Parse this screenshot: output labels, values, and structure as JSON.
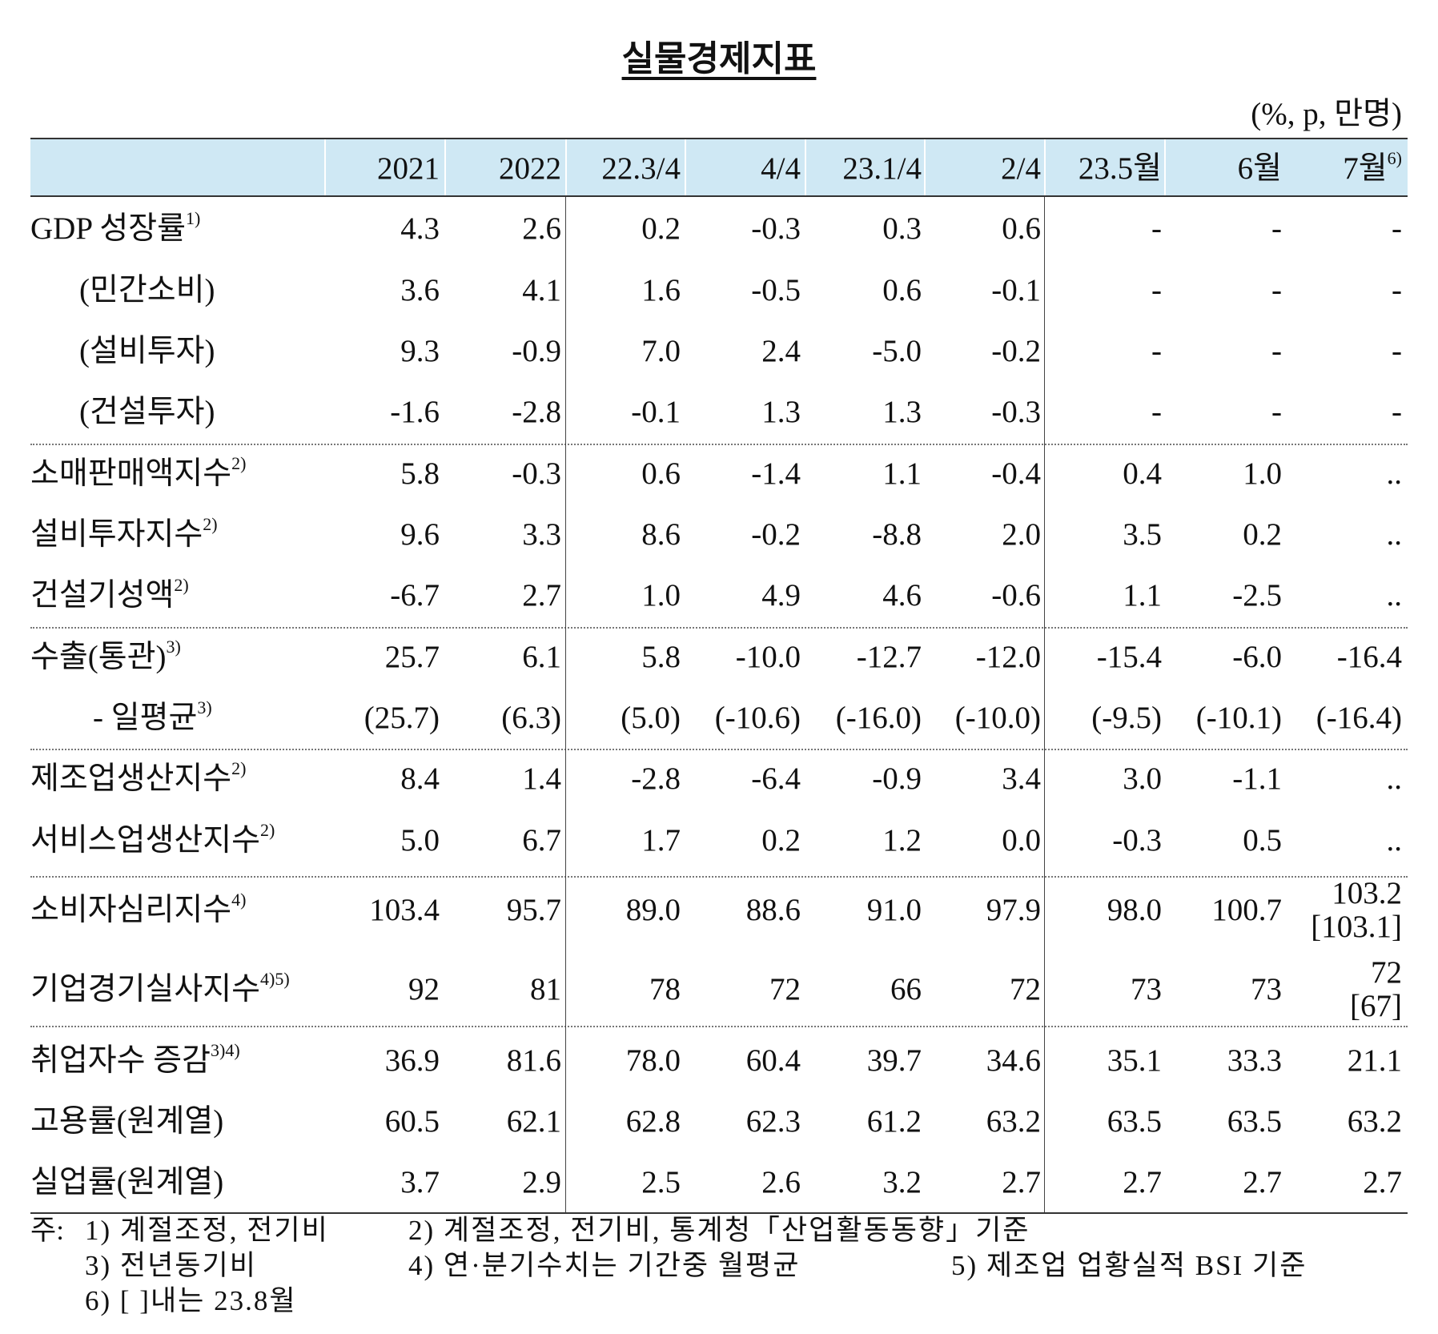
{
  "title": "실물경제지표",
  "unit": "(%, p, 만명)",
  "table": {
    "header": [
      {
        "text": "2021"
      },
      {
        "text": "2022"
      },
      {
        "text": "22.3/4"
      },
      {
        "text": "4/4"
      },
      {
        "text": "23.1/4"
      },
      {
        "text": "2/4"
      },
      {
        "text": "23.5월"
      },
      {
        "text": "6월"
      },
      {
        "text": "7월",
        "note": "6)"
      }
    ],
    "groups": [
      [
        {
          "label": "GDP 성장률",
          "note": "1)",
          "values": [
            "4.3",
            "2.6",
            "0.2",
            "-0.3",
            "0.3",
            "0.6",
            "-",
            "-",
            "-"
          ]
        },
        {
          "label": "(민간소비)",
          "values": [
            "3.6",
            "4.1",
            "1.6",
            "-0.5",
            "0.6",
            "-0.1",
            "-",
            "-",
            "-"
          ]
        },
        {
          "label": "(설비투자)",
          "values": [
            "9.3",
            "-0.9",
            "7.0",
            "2.4",
            "-5.0",
            "-0.2",
            "-",
            "-",
            "-"
          ]
        },
        {
          "label": "(건설투자)",
          "values": [
            "-1.6",
            "-2.8",
            "-0.1",
            "1.3",
            "1.3",
            "-0.3",
            "-",
            "-",
            "-"
          ]
        }
      ],
      [
        {
          "label": "소매판매액지수",
          "note": "2)",
          "values": [
            "5.8",
            "-0.3",
            "0.6",
            "-1.4",
            "1.1",
            "-0.4",
            "0.4",
            "1.0",
            ".."
          ]
        },
        {
          "label": "설비투자지수",
          "note": "2)",
          "values": [
            "9.6",
            "3.3",
            "8.6",
            "-0.2",
            "-8.8",
            "2.0",
            "3.5",
            "0.2",
            ".."
          ]
        },
        {
          "label": "건설기성액",
          "note": "2)",
          "values": [
            "-6.7",
            "2.7",
            "1.0",
            "4.9",
            "4.6",
            "-0.6",
            "1.1",
            "-2.5",
            ".."
          ]
        }
      ],
      [
        {
          "label": "수출(통관)",
          "note": "3)",
          "values": [
            "25.7",
            "6.1",
            "5.8",
            "-10.0",
            "-12.7",
            "-12.0",
            "-15.4",
            "-6.0",
            "-16.4"
          ]
        },
        {
          "label": "- 일평균",
          "note": "3)",
          "values": [
            "(25.7)",
            "(6.3)",
            "(5.0)",
            "(-10.6)",
            "(-16.0)",
            "(-10.0)",
            "(-9.5)",
            "(-10.1)",
            "(-16.4)"
          ]
        }
      ],
      [
        {
          "label": "제조업생산지수",
          "note": "2)",
          "values": [
            "8.4",
            "1.4",
            "-2.8",
            "-6.4",
            "-0.9",
            "3.4",
            "3.0",
            "-1.1",
            ".."
          ]
        },
        {
          "label": "서비스업생산지수",
          "note": "2)",
          "values": [
            "5.0",
            "6.7",
            "1.7",
            "0.2",
            "1.2",
            "0.0",
            "-0.3",
            "0.5",
            ".."
          ]
        }
      ],
      [
        {
          "label": "소비자심리지수",
          "note": "4)",
          "values": [
            "103.4",
            "95.7",
            "89.0",
            "88.6",
            "91.0",
            "97.9",
            "98.0",
            "100.7",
            [
              "103.2",
              "[103.1]"
            ]
          ]
        },
        {
          "label": "기업경기실사지수",
          "note": "4)5)",
          "values": [
            "92",
            "81",
            "78",
            "72",
            "66",
            "72",
            "73",
            "73",
            [
              "72",
              "[67]"
            ]
          ]
        }
      ],
      [
        {
          "label": "취업자수 증감",
          "note": "3)4)",
          "values": [
            "36.9",
            "81.6",
            "78.0",
            "60.4",
            "39.7",
            "34.6",
            "35.1",
            "33.3",
            "21.1"
          ]
        },
        {
          "label": "고용률(원계열)",
          "values": [
            "60.5",
            "62.1",
            "62.8",
            "62.3",
            "61.2",
            "63.2",
            "63.5",
            "63.5",
            "63.2"
          ]
        },
        {
          "label": "실업률(원계열)",
          "values": [
            "3.7",
            "2.9",
            "2.5",
            "2.6",
            "3.2",
            "2.7",
            "2.7",
            "2.7",
            "2.7"
          ]
        }
      ]
    ]
  },
  "notes": {
    "prefix": "주:",
    "items": [
      "1) 계절조정, 전기비",
      "2) 계절조정, 전기비, 통계청「산업활동동향」기준",
      "3) 전년동기비",
      "4) 연·분기수치는 기간중 월평균",
      "5) 제조업 업황실적 BSI 기준",
      "6) [ ]내는 23.8월"
    ]
  }
}
